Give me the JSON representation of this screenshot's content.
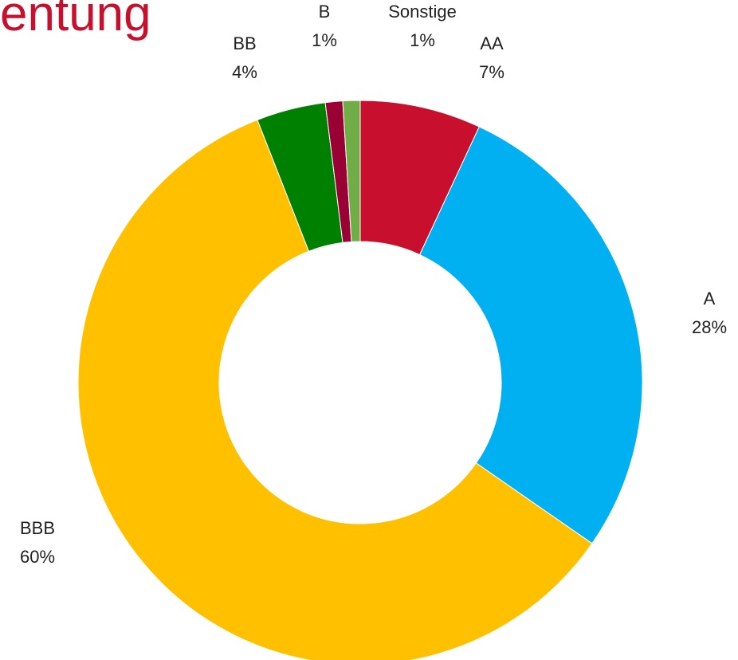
{
  "chart_data": {
    "type": "donut",
    "title": "entung",
    "categories": [
      "AA",
      "A",
      "BBB",
      "BB",
      "B",
      "Sonstige"
    ],
    "values": [
      7,
      28,
      60,
      4,
      1,
      1
    ],
    "value_labels": [
      "7%",
      "28%",
      "60%",
      "4%",
      "1%",
      "1%"
    ],
    "colors": [
      "#c8102e",
      "#00b0f0",
      "#ffc000",
      "#008000",
      "#990033",
      "#70ad47"
    ]
  }
}
